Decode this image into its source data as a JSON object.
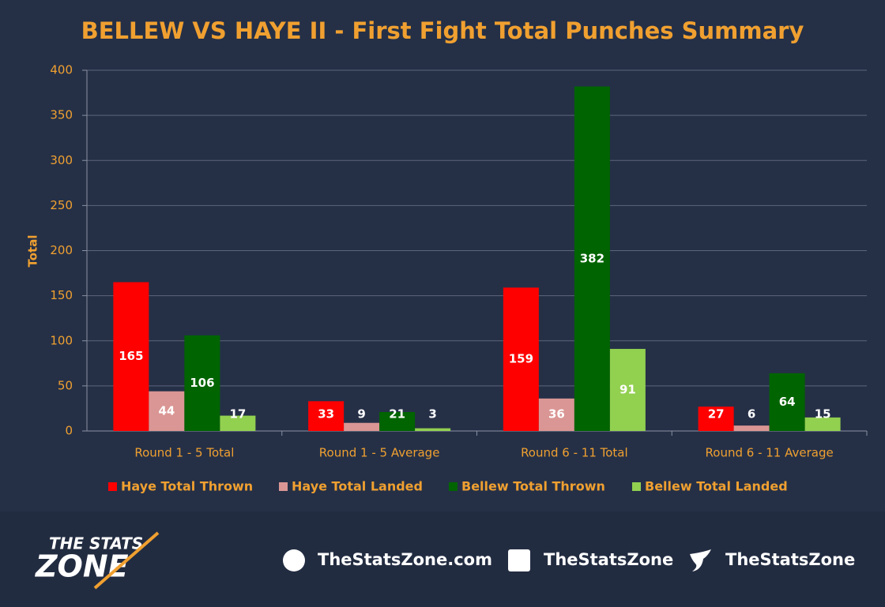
{
  "chart_data": {
    "type": "bar",
    "title": "BELLEW VS HAYE II - First Fight Total Punches Summary",
    "y_label": "Total",
    "categories": [
      "Round 1 - 5 Total",
      "Round 1 - 5 Average",
      "Round 6 - 11 Total",
      "Round 6 - 11 Average"
    ],
    "series": [
      {
        "name": "Haye Total Thrown",
        "color": "#ff0000",
        "values": [
          165,
          33,
          159,
          27
        ]
      },
      {
        "name": "Haye Total Landed",
        "color": "#da9694",
        "values": [
          44,
          9,
          36,
          6
        ]
      },
      {
        "name": "Bellew Total Thrown",
        "color": "#006400",
        "values": [
          106,
          21,
          382,
          64
        ]
      },
      {
        "name": "Bellew Total Landed",
        "color": "#92d050",
        "values": [
          17,
          3,
          91,
          15
        ]
      }
    ],
    "ylim": [
      0,
      400
    ],
    "yticks": [
      0,
      50,
      100,
      150,
      200,
      250,
      300,
      350,
      400
    ],
    "grid": true,
    "legend": "bottom"
  },
  "footer": {
    "logo_top": "THE STATS",
    "logo_bottom": "ZONE",
    "website": "TheStatsZone.com",
    "facebook": "TheStatsZone",
    "twitter": "TheStatsZone"
  }
}
